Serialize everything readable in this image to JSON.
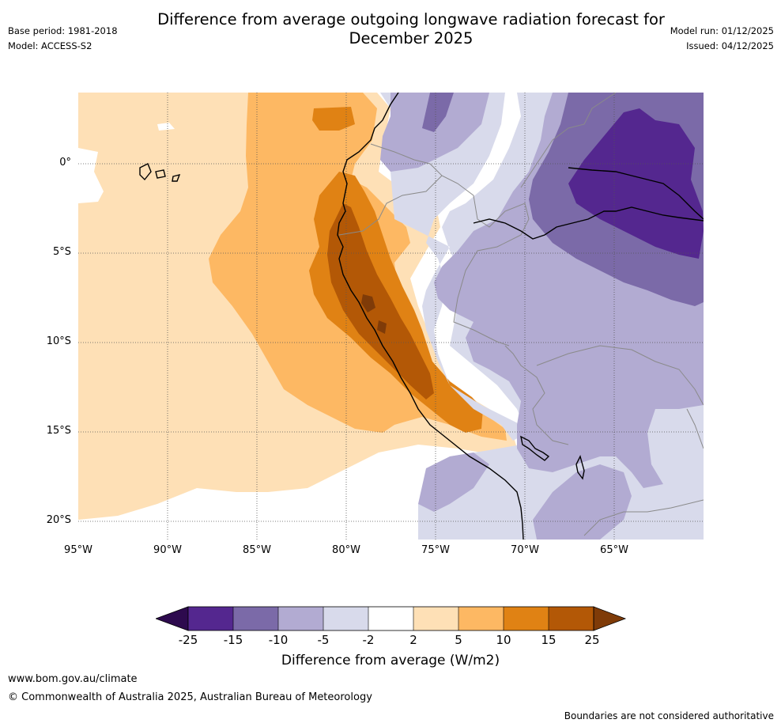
{
  "title": "Difference from average outgoing longwave radiation forecast for December 2025",
  "meta": {
    "base_period": "Base period: 1981-2018",
    "model": "Model: ACCESS-S2",
    "model_run": "Model run: 01/12/2025",
    "issued": "Issued: 04/12/2025"
  },
  "map": {
    "lat_labels": [
      "0°",
      "5°S",
      "10°S",
      "15°S",
      "20°S"
    ],
    "lon_labels": [
      "95°W",
      "90°W",
      "85°W",
      "80°W",
      "75°W",
      "70°W",
      "65°W"
    ]
  },
  "colorbar": {
    "title": "Difference from average (W/m2)",
    "tick_labels": [
      "-25",
      "-15",
      "-10",
      "-5",
      "-2",
      "2",
      "5",
      "10",
      "15",
      "25"
    ],
    "colors": {
      "extend_low": "#2d0a4e",
      "b1": "#54278f",
      "b2": "#7b6aa8",
      "b3": "#b2abd2",
      "b4": "#d8daeb",
      "b5": "#ffffff",
      "b6": "#fee0b6",
      "b7": "#fdb863",
      "b8": "#e08214",
      "b9": "#b35806",
      "extend_high": "#7f3b08"
    }
  },
  "footer": {
    "url": "www.bom.gov.au/climate",
    "copyright": "© Commonwealth of Australia 2025, Australian Bureau of Meteorology",
    "disclaimer": "Boundaries are not considered authoritative"
  }
}
